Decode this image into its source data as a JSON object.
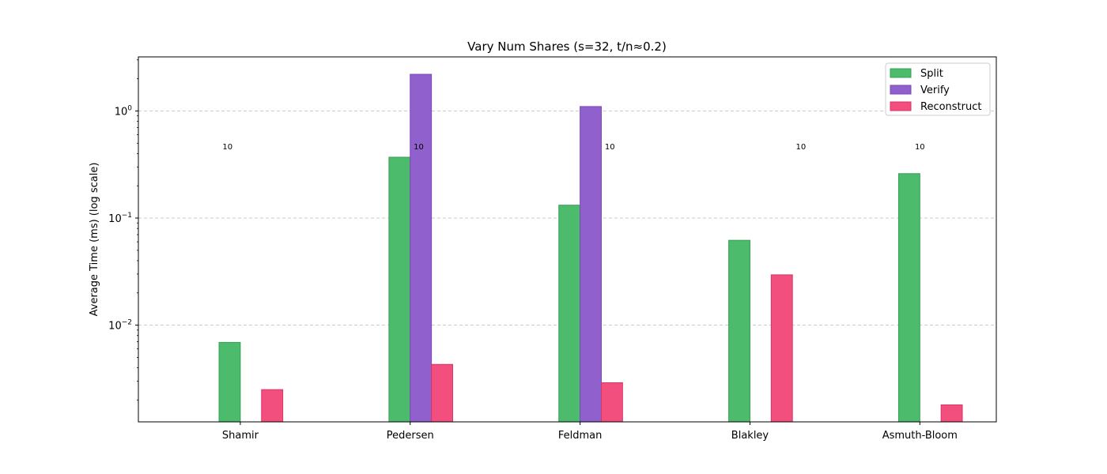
{
  "chart_data": {
    "type": "bar",
    "title": "Vary Num Shares (s=32, t/n≈0.2)",
    "xlabel": "",
    "ylabel": "Average Time (ms) (log scale)",
    "yscale": "log",
    "ylim": [
      0.00125,
      3.2
    ],
    "yticks": [
      {
        "value": 0.01,
        "base": "10",
        "exp": "−2"
      },
      {
        "value": 0.1,
        "base": "10",
        "exp": "−1"
      },
      {
        "value": 1,
        "base": "10",
        "exp": "0"
      }
    ],
    "grid": "y-major-dashed",
    "legend_position": "top-right",
    "categories": [
      "Shamir",
      "Pedersen",
      "Feldman",
      "Blakley",
      "Asmuth-Bloom"
    ],
    "category_x": [
      2.0,
      4.0,
      6.0,
      8.0,
      10.0
    ],
    "bar_offsets": [
      -0.25,
      0.0,
      0.25
    ],
    "series": [
      {
        "name": "Split",
        "color": "#4cbb6c",
        "edge": "#37a055",
        "values": [
          0.0069,
          0.37,
          0.132,
          0.062,
          0.26
        ]
      },
      {
        "name": "Verify",
        "color": "#9061cc",
        "edge": "#7a47b8",
        "values": [
          null,
          2.2,
          1.1,
          null,
          null
        ]
      },
      {
        "name": "Reconstruct",
        "color": "#f24f7f",
        "edge": "#d63566",
        "values": [
          0.0025,
          0.0043,
          0.0029,
          0.0295,
          0.0018
        ]
      }
    ],
    "annotations": [
      {
        "text": "10",
        "x": 1.85,
        "y": 0.44
      },
      {
        "text": "10",
        "x": 4.1,
        "y": 0.44
      },
      {
        "text": "10",
        "x": 6.35,
        "y": 0.44
      },
      {
        "text": "10",
        "x": 8.6,
        "y": 0.44
      },
      {
        "text": "10",
        "x": 10.0,
        "y": 0.44
      }
    ]
  }
}
